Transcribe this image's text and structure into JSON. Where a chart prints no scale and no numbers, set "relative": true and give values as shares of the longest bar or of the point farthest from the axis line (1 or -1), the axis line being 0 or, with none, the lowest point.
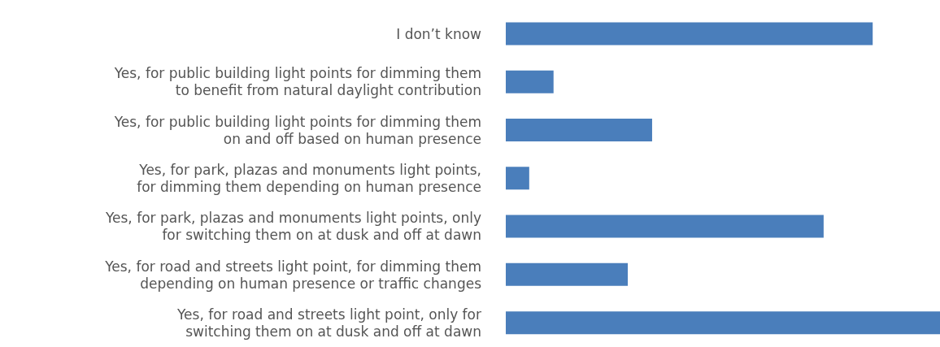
{
  "chart_data": {
    "type": "bar",
    "orientation": "horizontal",
    "relative": true,
    "categories": [
      "I don’t know",
      "Yes, for public building light points for dimming them\nto benefit from natural daylight contribution",
      "Yes, for public building light points for dimming them\non and off based on human presence",
      "Yes, for park, plazas and monuments light points,\nfor dimming them depending on human presence",
      "Yes, for park, plazas and monuments light points, only\nfor switching them on at dusk and off at dawn",
      "Yes, for road and streets light point, for dimming them\ndepending on human presence or traffic changes",
      "Yes, for road and streets light point, only for\nswitching them on at dusk and off at dawn"
    ],
    "values": [
      0.845,
      0.11,
      0.337,
      0.054,
      0.732,
      0.281,
      1
    ],
    "color": "#4a7ebb",
    "grid": false,
    "legend": false
  }
}
